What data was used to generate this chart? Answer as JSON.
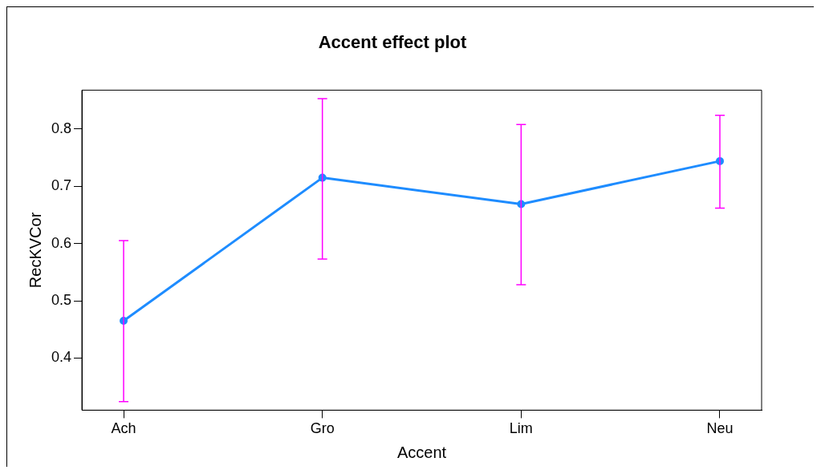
{
  "chart_data": {
    "type": "line",
    "title": "Accent effect plot",
    "xlabel": "Accent",
    "ylabel": "RecKVCor",
    "categories": [
      "Ach",
      "Gro",
      "Lim",
      "Neu"
    ],
    "series": [
      {
        "color": "#1e8cff",
        "values": [
          0.465,
          0.715,
          0.669,
          0.744
        ],
        "errors": [
          [
            0.324,
            0.605
          ],
          [
            0.573,
            0.853
          ],
          [
            0.528,
            0.808
          ],
          [
            0.662,
            0.824
          ]
        ]
      }
    ],
    "ylim": [
      0.309,
      0.868
    ],
    "yticks": [
      0.4,
      0.5,
      0.6,
      0.7,
      0.8
    ],
    "grid": false,
    "legend": false,
    "marker": "circle",
    "line_style": "solid"
  }
}
